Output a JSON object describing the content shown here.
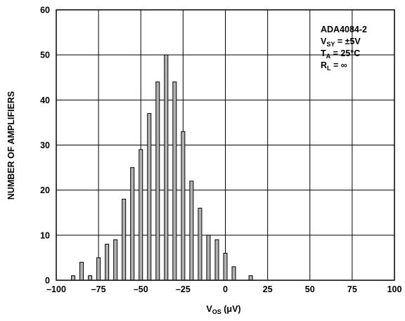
{
  "chart_data": {
    "type": "bar",
    "xlabel_main": "V",
    "xlabel_sub": "OS",
    "xlabel_unit": " (μV)",
    "ylabel": "NUMBER OF AMPLIFIERS",
    "xlim": [
      -100,
      100
    ],
    "ylim": [
      0,
      60
    ],
    "x_ticks": [
      -100,
      -75,
      -50,
      -25,
      0,
      25,
      50,
      75,
      100
    ],
    "x_tick_labels": [
      "–100",
      "–75",
      "–50",
      "–25",
      "0",
      "25",
      "50",
      "75",
      "100"
    ],
    "y_ticks": [
      0,
      10,
      20,
      30,
      40,
      50,
      60
    ],
    "y_tick_labels": [
      "0",
      "10",
      "20",
      "30",
      "40",
      "50",
      "60"
    ],
    "grid": true,
    "bar_color": "#b3b3b3",
    "bin_width_uV": 5,
    "bins": [
      {
        "x": -90,
        "count": 1
      },
      {
        "x": -85,
        "count": 4
      },
      {
        "x": -80,
        "count": 1
      },
      {
        "x": -75,
        "count": 5
      },
      {
        "x": -70,
        "count": 8
      },
      {
        "x": -65,
        "count": 9
      },
      {
        "x": -60,
        "count": 18
      },
      {
        "x": -55,
        "count": 25
      },
      {
        "x": -50,
        "count": 29
      },
      {
        "x": -45,
        "count": 37
      },
      {
        "x": -40,
        "count": 44
      },
      {
        "x": -35,
        "count": 50
      },
      {
        "x": -30,
        "count": 44
      },
      {
        "x": -25,
        "count": 33
      },
      {
        "x": -20,
        "count": 22
      },
      {
        "x": -15,
        "count": 16
      },
      {
        "x": -10,
        "count": 10
      },
      {
        "x": -5,
        "count": 9
      },
      {
        "x": 0,
        "count": 6
      },
      {
        "x": 5,
        "count": 3
      },
      {
        "x": 10,
        "count": 0
      },
      {
        "x": 15,
        "count": 1
      }
    ],
    "annotation": {
      "line1": "ADA4084-2",
      "line2": {
        "main": "V",
        "sub": "SY",
        "rest": " = ±5V"
      },
      "line3": {
        "main": "T",
        "sub": "A",
        "rest": " = 25°C"
      },
      "line4": {
        "main": "R",
        "sub": "L",
        "rest": " = ∞"
      }
    }
  }
}
